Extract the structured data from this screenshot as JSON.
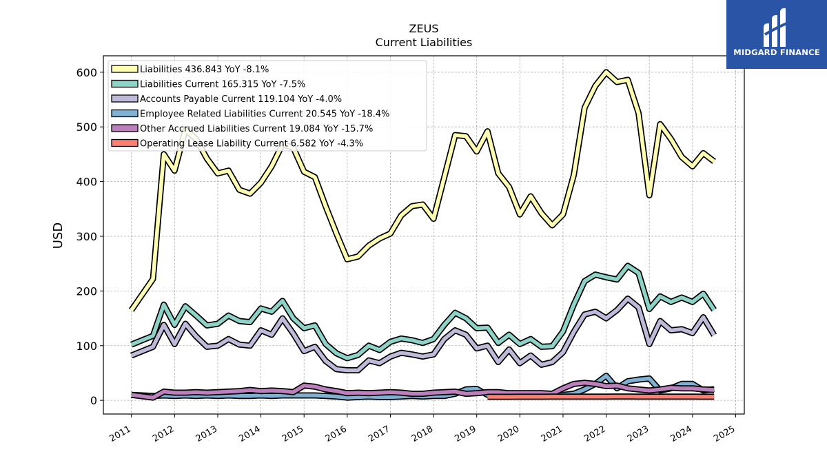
{
  "brand": {
    "name": "MIDGARD FINANCE",
    "color": "#2a55a7"
  },
  "chart_data": {
    "type": "line",
    "title": "ZEUS",
    "subtitle": "Current  Liabilities",
    "ylabel": "USD",
    "xlabel": "",
    "ylim": [
      -25,
      630
    ],
    "xlim": [
      2010.35,
      2025.2
    ],
    "yticks": [
      0,
      100,
      200,
      300,
      400,
      500,
      600
    ],
    "xticks": [
      "2011",
      "2012",
      "2013",
      "2014",
      "2015",
      "2016",
      "2017",
      "2018",
      "2019",
      "2020",
      "2021",
      "2022",
      "2023",
      "2024",
      "2025"
    ],
    "grid": true,
    "legend_position": "top-left",
    "series": [
      {
        "name": "Liabilities",
        "legend": "Liabilities  436.843 YoY -8.1%",
        "color": "#ffffb3",
        "x": [
          2011.0,
          2011.5,
          2011.75,
          2012.0,
          2012.25,
          2012.5,
          2012.75,
          2013.0,
          2013.25,
          2013.5,
          2013.75,
          2014.0,
          2014.25,
          2014.5,
          2014.75,
          2015.0,
          2015.25,
          2015.5,
          2015.75,
          2016.0,
          2016.25,
          2016.5,
          2016.75,
          2017.0,
          2017.25,
          2017.5,
          2017.75,
          2018.0,
          2018.25,
          2018.5,
          2018.75,
          2019.0,
          2019.25,
          2019.5,
          2019.75,
          2020.0,
          2020.25,
          2020.5,
          2020.75,
          2021.0,
          2021.25,
          2021.5,
          2021.75,
          2022.0,
          2022.25,
          2022.5,
          2022.75,
          2023.0,
          2023.25,
          2023.5,
          2023.75,
          2024.0,
          2024.25,
          2024.5
        ],
        "y": [
          165,
          222,
          450,
          420,
          495,
          478,
          442,
          415,
          420,
          385,
          378,
          398,
          428,
          468,
          462,
          418,
          408,
          355,
          305,
          258,
          263,
          283,
          296,
          305,
          338,
          355,
          358,
          332,
          408,
          485,
          483,
          455,
          492,
          415,
          390,
          340,
          373,
          342,
          320,
          340,
          412,
          535,
          575,
          600,
          582,
          586,
          525,
          375,
          505,
          478,
          445,
          428,
          452,
          436.843
        ]
      },
      {
        "name": "Liabilities Current",
        "legend": "Liabilities Current  165.315 YoY -7.5%",
        "color": "#8dd3c7",
        "x": [
          2011.0,
          2011.5,
          2011.75,
          2012.0,
          2012.25,
          2012.5,
          2012.75,
          2013.0,
          2013.25,
          2013.5,
          2013.75,
          2014.0,
          2014.25,
          2014.5,
          2014.75,
          2015.0,
          2015.25,
          2015.5,
          2015.75,
          2016.0,
          2016.25,
          2016.5,
          2016.75,
          2017.0,
          2017.25,
          2017.5,
          2017.75,
          2018.0,
          2018.25,
          2018.5,
          2018.75,
          2019.0,
          2019.25,
          2019.5,
          2019.75,
          2020.0,
          2020.25,
          2020.5,
          2020.75,
          2021.0,
          2021.25,
          2021.5,
          2021.75,
          2022.0,
          2022.25,
          2022.5,
          2022.75,
          2023.0,
          2023.25,
          2023.5,
          2023.75,
          2024.0,
          2024.25,
          2024.5
        ],
        "y": [
          102,
          118,
          175,
          138,
          172,
          155,
          137,
          140,
          155,
          145,
          143,
          168,
          162,
          182,
          150,
          132,
          137,
          103,
          86,
          77,
          83,
          100,
          92,
          107,
          113,
          110,
          105,
          112,
          138,
          160,
          150,
          132,
          133,
          105,
          120,
          103,
          112,
          98,
          99,
          126,
          175,
          218,
          230,
          225,
          221,
          246,
          233,
          167,
          190,
          180,
          188,
          180,
          195,
          165.315
        ]
      },
      {
        "name": "Accounts Payable Current",
        "legend": "Accounts Payable Current  119.104 YoY -4.0%",
        "color": "#bebada",
        "x": [
          2011.0,
          2011.5,
          2011.75,
          2012.0,
          2012.25,
          2012.5,
          2012.75,
          2013.0,
          2013.25,
          2013.5,
          2013.75,
          2014.0,
          2014.25,
          2014.5,
          2014.75,
          2015.0,
          2015.25,
          2015.5,
          2015.75,
          2016.0,
          2016.25,
          2016.5,
          2016.75,
          2017.0,
          2017.25,
          2017.5,
          2017.75,
          2018.0,
          2018.25,
          2018.5,
          2018.75,
          2019.0,
          2019.25,
          2019.5,
          2019.75,
          2020.0,
          2020.25,
          2020.5,
          2020.75,
          2021.0,
          2021.25,
          2021.5,
          2021.75,
          2022.0,
          2022.25,
          2022.5,
          2022.75,
          2023.0,
          2023.25,
          2023.5,
          2023.75,
          2024.0,
          2024.25,
          2024.5
        ],
        "y": [
          82,
          98,
          138,
          103,
          140,
          117,
          98,
          100,
          112,
          102,
          100,
          128,
          120,
          150,
          122,
          90,
          98,
          72,
          57,
          55,
          55,
          73,
          68,
          80,
          87,
          84,
          80,
          84,
          112,
          128,
          120,
          95,
          100,
          70,
          93,
          68,
          82,
          65,
          70,
          88,
          125,
          157,
          162,
          150,
          165,
          186,
          170,
          103,
          145,
          128,
          130,
          123,
          152,
          119.104
        ]
      },
      {
        "name": "Employee Related Liabilities Current",
        "legend": "Employee Related Liabilities Current  20.545 YoY -18.4%",
        "color": "#80b1d3",
        "x": [
          2011.0,
          2011.5,
          2011.75,
          2012.0,
          2012.25,
          2012.5,
          2012.75,
          2013.0,
          2013.25,
          2013.5,
          2013.75,
          2014.0,
          2014.25,
          2014.5,
          2014.75,
          2015.0,
          2015.25,
          2015.5,
          2015.75,
          2016.0,
          2016.25,
          2016.5,
          2016.75,
          2017.0,
          2017.25,
          2017.5,
          2017.75,
          2018.0,
          2018.25,
          2018.5,
          2018.75,
          2019.0,
          2019.25,
          2019.5,
          2019.75,
          2020.0,
          2020.25,
          2020.5,
          2020.75,
          2021.0,
          2021.25,
          2021.5,
          2021.75,
          2022.0,
          2022.25,
          2022.5,
          2022.75,
          2023.0,
          2023.25,
          2023.5,
          2023.75,
          2024.0,
          2024.25,
          2024.5
        ],
        "y": [
          10,
          8,
          9,
          8,
          9,
          8,
          9,
          8,
          9,
          8,
          8,
          9,
          8,
          9,
          9,
          9,
          9,
          8,
          7,
          5,
          6,
          7,
          6,
          6,
          7,
          8,
          7,
          8,
          8,
          12,
          20,
          21,
          10,
          9,
          8,
          8,
          8,
          8,
          8,
          10,
          12,
          20,
          30,
          45,
          22,
          35,
          38,
          40,
          18,
          22,
          30,
          30,
          18,
          20.545
        ]
      },
      {
        "name": "Other Accrued Liabilities Current",
        "legend": "Other Accrued Liabilities Current  19.084 YoY -15.7%",
        "color": "#bc80bd",
        "x": [
          2011.0,
          2011.5,
          2011.75,
          2012.0,
          2012.25,
          2012.5,
          2012.75,
          2013.0,
          2013.25,
          2013.5,
          2013.75,
          2014.0,
          2014.25,
          2014.5,
          2014.75,
          2015.0,
          2015.25,
          2015.5,
          2015.75,
          2016.0,
          2016.25,
          2016.5,
          2016.75,
          2017.0,
          2017.25,
          2017.5,
          2017.75,
          2018.0,
          2018.25,
          2018.5,
          2018.75,
          2019.0,
          2019.25,
          2019.5,
          2019.75,
          2020.0,
          2020.25,
          2020.5,
          2020.75,
          2021.0,
          2021.25,
          2021.5,
          2021.75,
          2022.0,
          2022.25,
          2022.5,
          2022.75,
          2023.0,
          2023.25,
          2023.5,
          2023.75,
          2024.0,
          2024.25,
          2024.5
        ],
        "y": [
          10,
          5,
          16,
          14,
          14,
          15,
          14,
          15,
          16,
          17,
          19,
          17,
          18,
          17,
          15,
          27,
          25,
          20,
          17,
          13,
          14,
          13,
          14,
          15,
          14,
          12,
          12,
          14,
          15,
          16,
          12,
          13,
          15,
          15,
          13,
          13,
          13,
          13,
          12,
          22,
          30,
          32,
          30,
          26,
          27,
          22,
          20,
          18,
          20,
          23,
          22,
          22,
          20,
          19.084
        ]
      },
      {
        "name": "Operating Lease Liability Current",
        "legend": "Operating Lease Liability Current  6.582 YoY -4.3%",
        "color": "#fb8072",
        "x": [
          2019.25,
          2019.5,
          2019.75,
          2020.0,
          2020.25,
          2020.5,
          2020.75,
          2021.0,
          2021.25,
          2021.5,
          2021.75,
          2022.0,
          2022.25,
          2022.5,
          2022.75,
          2023.0,
          2023.25,
          2023.5,
          2023.75,
          2024.0,
          2024.25,
          2024.5
        ],
        "y": [
          6.5,
          6.5,
          6.5,
          6.6,
          6.6,
          6.6,
          6.7,
          6.7,
          6.8,
          6.8,
          6.9,
          6.9,
          7.0,
          7.0,
          6.9,
          6.9,
          6.8,
          6.8,
          6.7,
          6.7,
          6.6,
          6.582
        ]
      }
    ]
  }
}
